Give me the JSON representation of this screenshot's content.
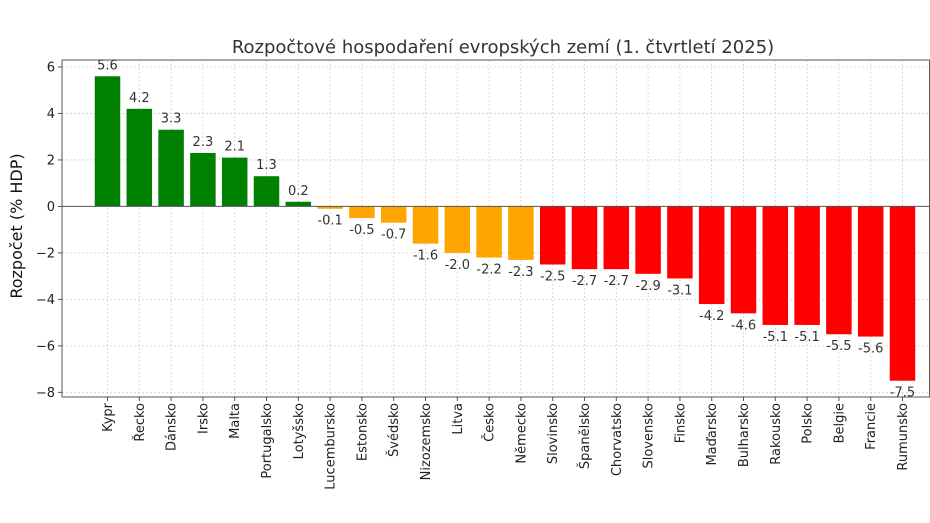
{
  "chart_data": {
    "type": "bar",
    "title": "Rozpočtové hospodaření evropských zemí (1. čtvrtletí 2025)",
    "xlabel": "",
    "ylabel": "Rozpočet (% HDP)",
    "ylim": [
      -8.2,
      6.3
    ],
    "yticks": [
      -8,
      -6,
      -4,
      -2,
      0,
      2,
      4,
      6
    ],
    "ytick_labels": [
      "−8",
      "−6",
      "−4",
      "−2",
      "0",
      "2",
      "4",
      "6"
    ],
    "grid": true,
    "categories": [
      "Kypr",
      "Řecko",
      "Dánsko",
      "Irsko",
      "Malta",
      "Portugalsko",
      "Lotyšsko",
      "Lucembursko",
      "Estonsko",
      "Švédsko",
      "Nizozemsko",
      "Litva",
      "Česko",
      "Německo",
      "Slovinsko",
      "Španělsko",
      "Chorvatsko",
      "Slovensko",
      "Finsko",
      "Maďarsko",
      "Bulharsko",
      "Rakousko",
      "Polsko",
      "Belgie",
      "Francie",
      "Rumunsko"
    ],
    "values": [
      5.6,
      4.2,
      3.3,
      2.3,
      2.1,
      1.3,
      0.2,
      -0.1,
      -0.5,
      -0.7,
      -1.6,
      -2.0,
      -2.2,
      -2.3,
      -2.5,
      -2.7,
      -2.7,
      -2.9,
      -3.1,
      -4.2,
      -4.6,
      -5.1,
      -5.1,
      -5.5,
      -5.6,
      -7.5
    ],
    "value_labels": [
      "5.6",
      "4.2",
      "3.3",
      "2.3",
      "2.1",
      "1.3",
      "0.2",
      "-0.1",
      "-0.5",
      "-0.7",
      "-1.6",
      "-2.0",
      "-2.2",
      "-2.3",
      "-2.5",
      "-2.7",
      "-2.7",
      "-2.9",
      "-3.1",
      "-4.2",
      "-4.6",
      "-5.1",
      "-5.1",
      "-5.5",
      "-5.6",
      "-7.5"
    ],
    "colors": {
      "positive": "#008000",
      "mild_deficit": "#FFA500",
      "deficit": "#FF0000"
    }
  }
}
